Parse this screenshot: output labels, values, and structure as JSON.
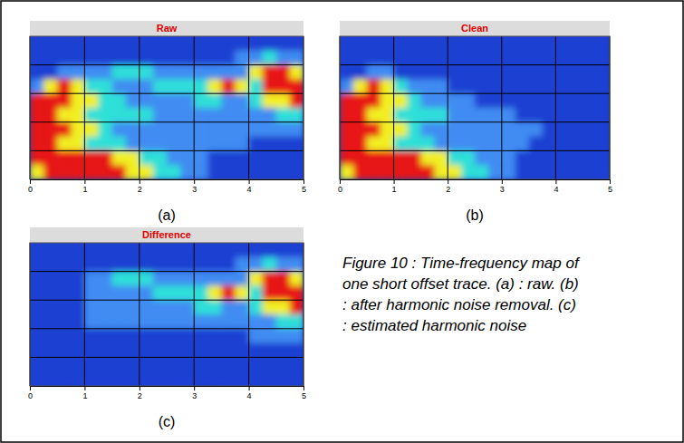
{
  "chart_data": [
    {
      "type": "heatmap",
      "title": "Raw",
      "panel_label": "(a)",
      "xlim": [
        0,
        5
      ],
      "xticks": [
        0,
        1,
        2,
        3,
        4,
        5
      ],
      "ylim": [
        0,
        5
      ],
      "yticks": [
        1,
        2,
        3,
        4
      ],
      "grid": true,
      "tick_labels": "x",
      "zlim": [
        0,
        4
      ],
      "cells": [
        [
          0,
          0,
          0,
          0,
          0,
          0,
          0,
          0,
          0,
          0,
          0,
          0,
          0,
          0,
          0,
          0,
          0,
          0,
          0,
          0
        ],
        [
          0,
          0,
          0,
          0,
          0,
          0,
          0,
          0,
          0,
          0,
          0,
          0,
          0,
          0,
          0,
          1,
          1,
          2,
          1,
          1
        ],
        [
          0,
          0,
          1,
          1,
          1,
          1,
          2,
          2,
          2,
          1,
          1,
          1,
          1,
          1,
          1,
          1,
          3,
          4,
          4,
          3
        ],
        [
          1,
          3,
          4,
          3,
          2,
          2,
          1,
          1,
          1,
          2,
          2,
          2,
          2,
          3,
          4,
          3,
          2,
          4,
          4,
          4
        ],
        [
          4,
          4,
          4,
          3,
          3,
          2,
          2,
          1,
          1,
          1,
          1,
          1,
          2,
          2,
          1,
          1,
          2,
          3,
          3,
          4
        ],
        [
          4,
          4,
          3,
          3,
          2,
          2,
          2,
          2,
          2,
          1,
          1,
          1,
          1,
          1,
          1,
          1,
          1,
          1,
          2,
          2
        ],
        [
          4,
          4,
          4,
          3,
          3,
          2,
          1,
          1,
          1,
          1,
          1,
          1,
          1,
          1,
          1,
          1,
          1,
          1,
          1,
          1
        ],
        [
          4,
          4,
          3,
          3,
          2,
          2,
          2,
          1,
          1,
          1,
          1,
          1,
          1,
          1,
          1,
          1,
          0,
          0,
          0,
          0
        ],
        [
          4,
          4,
          4,
          4,
          4,
          4,
          3,
          3,
          2,
          2,
          1,
          1,
          1,
          0,
          0,
          0,
          0,
          0,
          0,
          0
        ],
        [
          3,
          4,
          4,
          4,
          4,
          4,
          4,
          3,
          3,
          2,
          2,
          1,
          1,
          0,
          0,
          0,
          0,
          0,
          0,
          0
        ]
      ]
    },
    {
      "type": "heatmap",
      "title": "Clean",
      "panel_label": "(b)",
      "xlim": [
        0,
        5
      ],
      "xticks": [
        0,
        1,
        2,
        3,
        4,
        5
      ],
      "ylim": [
        0,
        5
      ],
      "yticks": [
        1,
        2,
        3,
        4
      ],
      "grid": true,
      "tick_labels": "x",
      "zlim": [
        0,
        4
      ],
      "cells": [
        [
          0,
          0,
          0,
          0,
          0,
          0,
          0,
          0,
          0,
          0,
          0,
          0,
          0,
          0,
          0,
          0,
          0,
          0,
          0,
          0
        ],
        [
          0,
          0,
          0,
          0,
          0,
          0,
          0,
          0,
          0,
          0,
          0,
          0,
          0,
          0,
          0,
          0,
          0,
          0,
          0,
          0
        ],
        [
          0,
          0,
          1,
          1,
          0,
          0,
          0,
          0,
          0,
          0,
          0,
          0,
          0,
          0,
          0,
          0,
          0,
          0,
          0,
          0
        ],
        [
          1,
          3,
          4,
          3,
          2,
          1,
          1,
          1,
          0,
          0,
          0,
          0,
          0,
          0,
          0,
          0,
          0,
          0,
          0,
          0
        ],
        [
          4,
          4,
          4,
          3,
          3,
          2,
          1,
          1,
          1,
          1,
          0,
          0,
          0,
          0,
          0,
          0,
          0,
          0,
          0,
          0
        ],
        [
          4,
          4,
          3,
          3,
          2,
          2,
          2,
          2,
          1,
          1,
          1,
          1,
          1,
          0,
          0,
          0,
          0,
          0,
          0,
          0
        ],
        [
          4,
          4,
          4,
          3,
          3,
          2,
          1,
          1,
          1,
          1,
          1,
          1,
          1,
          1,
          1,
          0,
          0,
          0,
          0,
          0
        ],
        [
          4,
          4,
          3,
          3,
          2,
          2,
          2,
          1,
          1,
          1,
          1,
          1,
          1,
          1,
          0,
          0,
          0,
          0,
          0,
          0
        ],
        [
          4,
          4,
          4,
          4,
          4,
          4,
          3,
          3,
          2,
          2,
          1,
          1,
          1,
          0,
          0,
          0,
          0,
          0,
          0,
          0
        ],
        [
          3,
          4,
          4,
          4,
          4,
          4,
          4,
          3,
          3,
          2,
          2,
          1,
          1,
          0,
          0,
          0,
          0,
          0,
          0,
          0
        ]
      ]
    },
    {
      "type": "heatmap",
      "title": "Difference",
      "panel_label": "(c)",
      "xlim": [
        0,
        5
      ],
      "xticks": [
        0,
        1,
        2,
        3,
        4,
        5
      ],
      "ylim": [
        0,
        5
      ],
      "yticks": [
        1,
        2,
        3,
        4
      ],
      "grid": true,
      "tick_labels": "x",
      "zlim": [
        0,
        4
      ],
      "cells": [
        [
          0,
          0,
          0,
          0,
          0,
          0,
          0,
          0,
          0,
          0,
          0,
          0,
          0,
          0,
          0,
          0,
          0,
          0,
          0,
          0
        ],
        [
          0,
          0,
          0,
          0,
          0,
          0,
          0,
          0,
          0,
          0,
          0,
          0,
          0,
          0,
          0,
          1,
          1,
          2,
          1,
          1
        ],
        [
          0,
          0,
          0,
          0,
          1,
          1,
          2,
          2,
          2,
          1,
          1,
          1,
          1,
          1,
          1,
          1,
          3,
          4,
          4,
          3
        ],
        [
          0,
          0,
          0,
          0,
          1,
          1,
          1,
          1,
          1,
          2,
          2,
          2,
          2,
          3,
          4,
          3,
          2,
          4,
          4,
          4
        ],
        [
          0,
          0,
          0,
          0,
          1,
          1,
          1,
          1,
          1,
          1,
          1,
          1,
          2,
          2,
          1,
          1,
          2,
          3,
          3,
          4
        ],
        [
          0,
          0,
          0,
          0,
          1,
          1,
          1,
          1,
          1,
          1,
          1,
          1,
          1,
          1,
          1,
          1,
          1,
          1,
          2,
          2
        ],
        [
          0,
          0,
          0,
          0,
          0,
          0,
          0,
          0,
          0,
          0,
          0,
          0,
          0,
          0,
          0,
          0,
          1,
          1,
          1,
          1
        ],
        [
          0,
          0,
          0,
          0,
          0,
          0,
          0,
          0,
          0,
          0,
          0,
          0,
          0,
          0,
          0,
          0,
          0,
          0,
          0,
          0
        ],
        [
          0,
          0,
          0,
          0,
          0,
          0,
          0,
          0,
          0,
          0,
          0,
          0,
          0,
          0,
          0,
          0,
          0,
          0,
          0,
          0
        ],
        [
          0,
          0,
          0,
          0,
          0,
          0,
          0,
          0,
          0,
          0,
          0,
          0,
          0,
          0,
          0,
          0,
          0,
          0,
          0,
          0
        ]
      ]
    }
  ],
  "caption": "Figure 10 : Time-frequency map of one short offset trace. (a) : raw. (b) : after harmonic noise removal. (c) : estimated harmonic noise"
}
